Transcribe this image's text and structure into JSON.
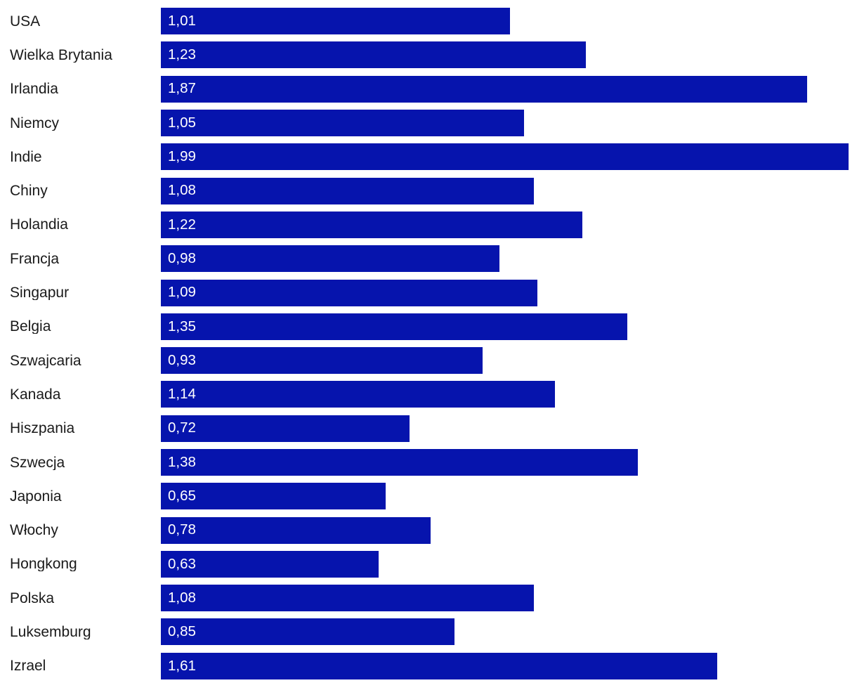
{
  "chart_data": {
    "type": "bar",
    "orientation": "horizontal",
    "title": "",
    "xlabel": "",
    "ylabel": "",
    "xlim": [
      0,
      1.99
    ],
    "grid": false,
    "legend": false,
    "bar_color": "#0614ad",
    "category_label_color": "#1a1a1a",
    "value_label_color": "#ffffff",
    "decimal_separator": ",",
    "categories": [
      "USA",
      "Wielka Brytania",
      "Irlandia",
      "Niemcy",
      "Indie",
      "Chiny",
      "Holandia",
      "Francja",
      "Singapur",
      "Belgia",
      "Szwajcaria",
      "Kanada",
      "Hiszpania",
      "Szwecja",
      "Japonia",
      "Włochy",
      "Hongkong",
      "Polska",
      "Luksemburg",
      "Izrael"
    ],
    "values": [
      1.01,
      1.23,
      1.87,
      1.05,
      1.99,
      1.08,
      1.22,
      0.98,
      1.09,
      1.35,
      0.93,
      1.14,
      0.72,
      1.38,
      0.65,
      0.78,
      0.63,
      1.08,
      0.85,
      1.61
    ],
    "value_labels": [
      "1,01",
      "1,23",
      "1,87",
      "1,05",
      "1,99",
      "1,08",
      "1,22",
      "0,98",
      "1,09",
      "1,35",
      "0,93",
      "1,14",
      "0,72",
      "1,38",
      "0,65",
      "0,78",
      "0,63",
      "1,08",
      "0,85",
      "1,61"
    ]
  }
}
